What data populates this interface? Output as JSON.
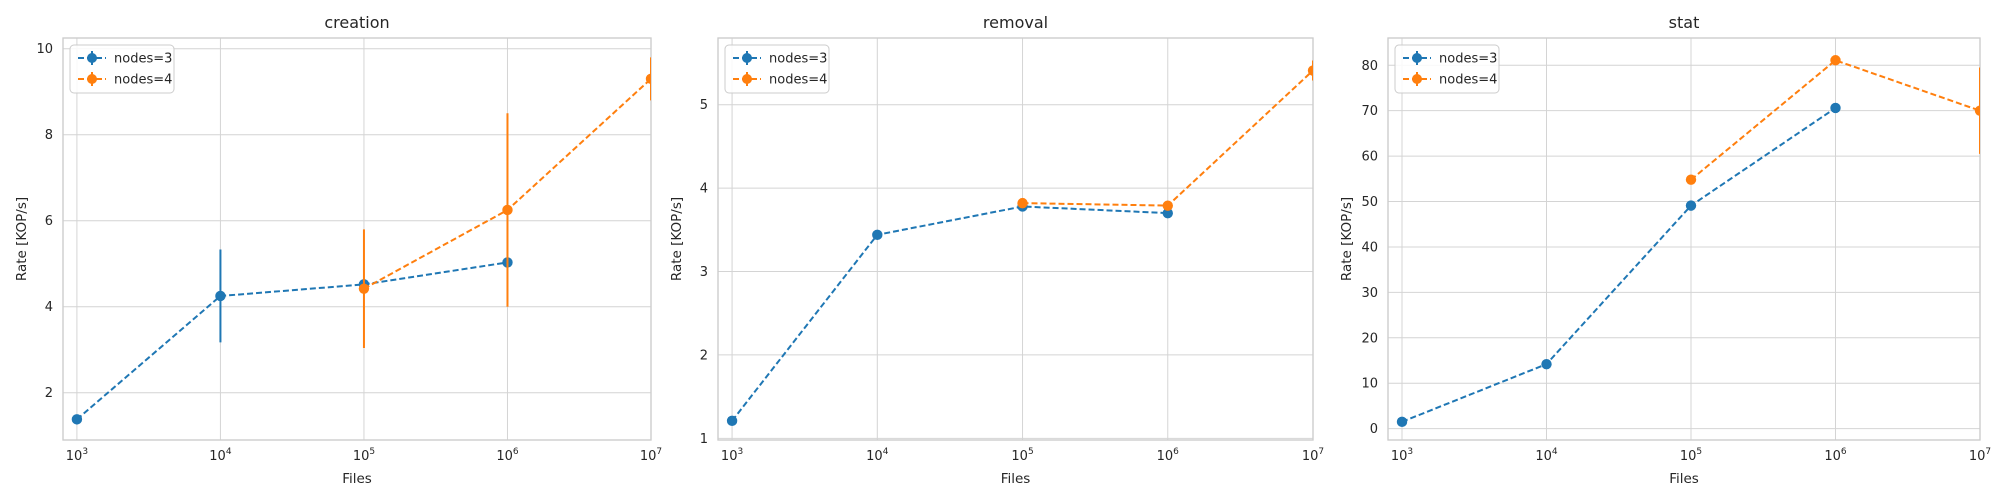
{
  "chart_data": [
    {
      "type": "line",
      "title": "creation",
      "xlabel": "Files",
      "ylabel": "Rate [KOP/s]",
      "x_scale": "log",
      "xlim": [
        800,
        10000000
      ],
      "ylim": [
        0.9,
        10.25
      ],
      "xticks": [
        {
          "value": 1000,
          "base": "10",
          "exp": "3"
        },
        {
          "value": 10000,
          "base": "10",
          "exp": "4"
        },
        {
          "value": 100000,
          "base": "10",
          "exp": "5"
        },
        {
          "value": 1000000,
          "base": "10",
          "exp": "6"
        },
        {
          "value": 10000000,
          "base": "10",
          "exp": "7"
        }
      ],
      "yticks": [
        {
          "value": 2,
          "label": "2"
        },
        {
          "value": 4,
          "label": "4"
        },
        {
          "value": 6,
          "label": "6"
        },
        {
          "value": 8,
          "label": "8"
        },
        {
          "value": 10,
          "label": "10"
        }
      ],
      "legend_position": "top-left",
      "series": [
        {
          "name": "nodes=3",
          "color": "#1f77b4",
          "x": [
            1000,
            10000,
            100000,
            1000000
          ],
          "y": [
            1.38,
            4.25,
            4.52,
            5.03
          ],
          "err": [
            0,
            1.08,
            0,
            0
          ]
        },
        {
          "name": "nodes=4",
          "color": "#ff7f0e",
          "x": [
            100000,
            1000000,
            10000000
          ],
          "y": [
            4.42,
            6.25,
            9.3
          ],
          "err": [
            1.38,
            2.25,
            0.5
          ]
        }
      ]
    },
    {
      "type": "line",
      "title": "removal",
      "xlabel": "Files",
      "ylabel": "Rate [KOP/s]",
      "x_scale": "log",
      "xlim": [
        800,
        10000000
      ],
      "ylim": [
        0.98,
        5.8
      ],
      "xticks": [
        {
          "value": 1000,
          "base": "10",
          "exp": "3"
        },
        {
          "value": 10000,
          "base": "10",
          "exp": "4"
        },
        {
          "value": 100000,
          "base": "10",
          "exp": "5"
        },
        {
          "value": 1000000,
          "base": "10",
          "exp": "6"
        },
        {
          "value": 10000000,
          "base": "10",
          "exp": "7"
        }
      ],
      "yticks": [
        {
          "value": 1,
          "label": "1"
        },
        {
          "value": 2,
          "label": "2"
        },
        {
          "value": 3,
          "label": "3"
        },
        {
          "value": 4,
          "label": "4"
        },
        {
          "value": 5,
          "label": "5"
        }
      ],
      "legend_position": "top-left",
      "series": [
        {
          "name": "nodes=3",
          "color": "#1f77b4",
          "x": [
            1000,
            10000,
            100000,
            1000000
          ],
          "y": [
            1.21,
            3.44,
            3.78,
            3.7
          ],
          "err": [
            0,
            0,
            0,
            0
          ]
        },
        {
          "name": "nodes=4",
          "color": "#ff7f0e",
          "x": [
            100000,
            1000000,
            10000000
          ],
          "y": [
            3.82,
            3.79,
            5.41
          ],
          "err": [
            0,
            0,
            0.12
          ]
        }
      ]
    },
    {
      "type": "line",
      "title": "stat",
      "xlabel": "Files",
      "ylabel": "Rate [KOP/s]",
      "x_scale": "log",
      "xlim": [
        800,
        10000000
      ],
      "ylim": [
        -2.5,
        86
      ],
      "xticks": [
        {
          "value": 1000,
          "base": "10",
          "exp": "3"
        },
        {
          "value": 10000,
          "base": "10",
          "exp": "4"
        },
        {
          "value": 100000,
          "base": "10",
          "exp": "5"
        },
        {
          "value": 1000000,
          "base": "10",
          "exp": "6"
        },
        {
          "value": 10000000,
          "base": "10",
          "exp": "7"
        }
      ],
      "yticks": [
        {
          "value": 0,
          "label": "0"
        },
        {
          "value": 10,
          "label": "10"
        },
        {
          "value": 20,
          "label": "20"
        },
        {
          "value": 30,
          "label": "30"
        },
        {
          "value": 40,
          "label": "40"
        },
        {
          "value": 50,
          "label": "50"
        },
        {
          "value": 60,
          "label": "60"
        },
        {
          "value": 70,
          "label": "70"
        },
        {
          "value": 80,
          "label": "80"
        }
      ],
      "legend_position": "top-left",
      "series": [
        {
          "name": "nodes=3",
          "color": "#1f77b4",
          "x": [
            1000,
            10000,
            100000,
            1000000
          ],
          "y": [
            1.5,
            14.2,
            49.1,
            70.6
          ],
          "err": [
            0,
            0,
            0,
            0
          ]
        },
        {
          "name": "nodes=4",
          "color": "#ff7f0e",
          "x": [
            100000,
            1000000,
            10000000
          ],
          "y": [
            54.8,
            81.1,
            70.0
          ],
          "err": [
            0,
            0,
            9.5
          ]
        }
      ]
    }
  ]
}
